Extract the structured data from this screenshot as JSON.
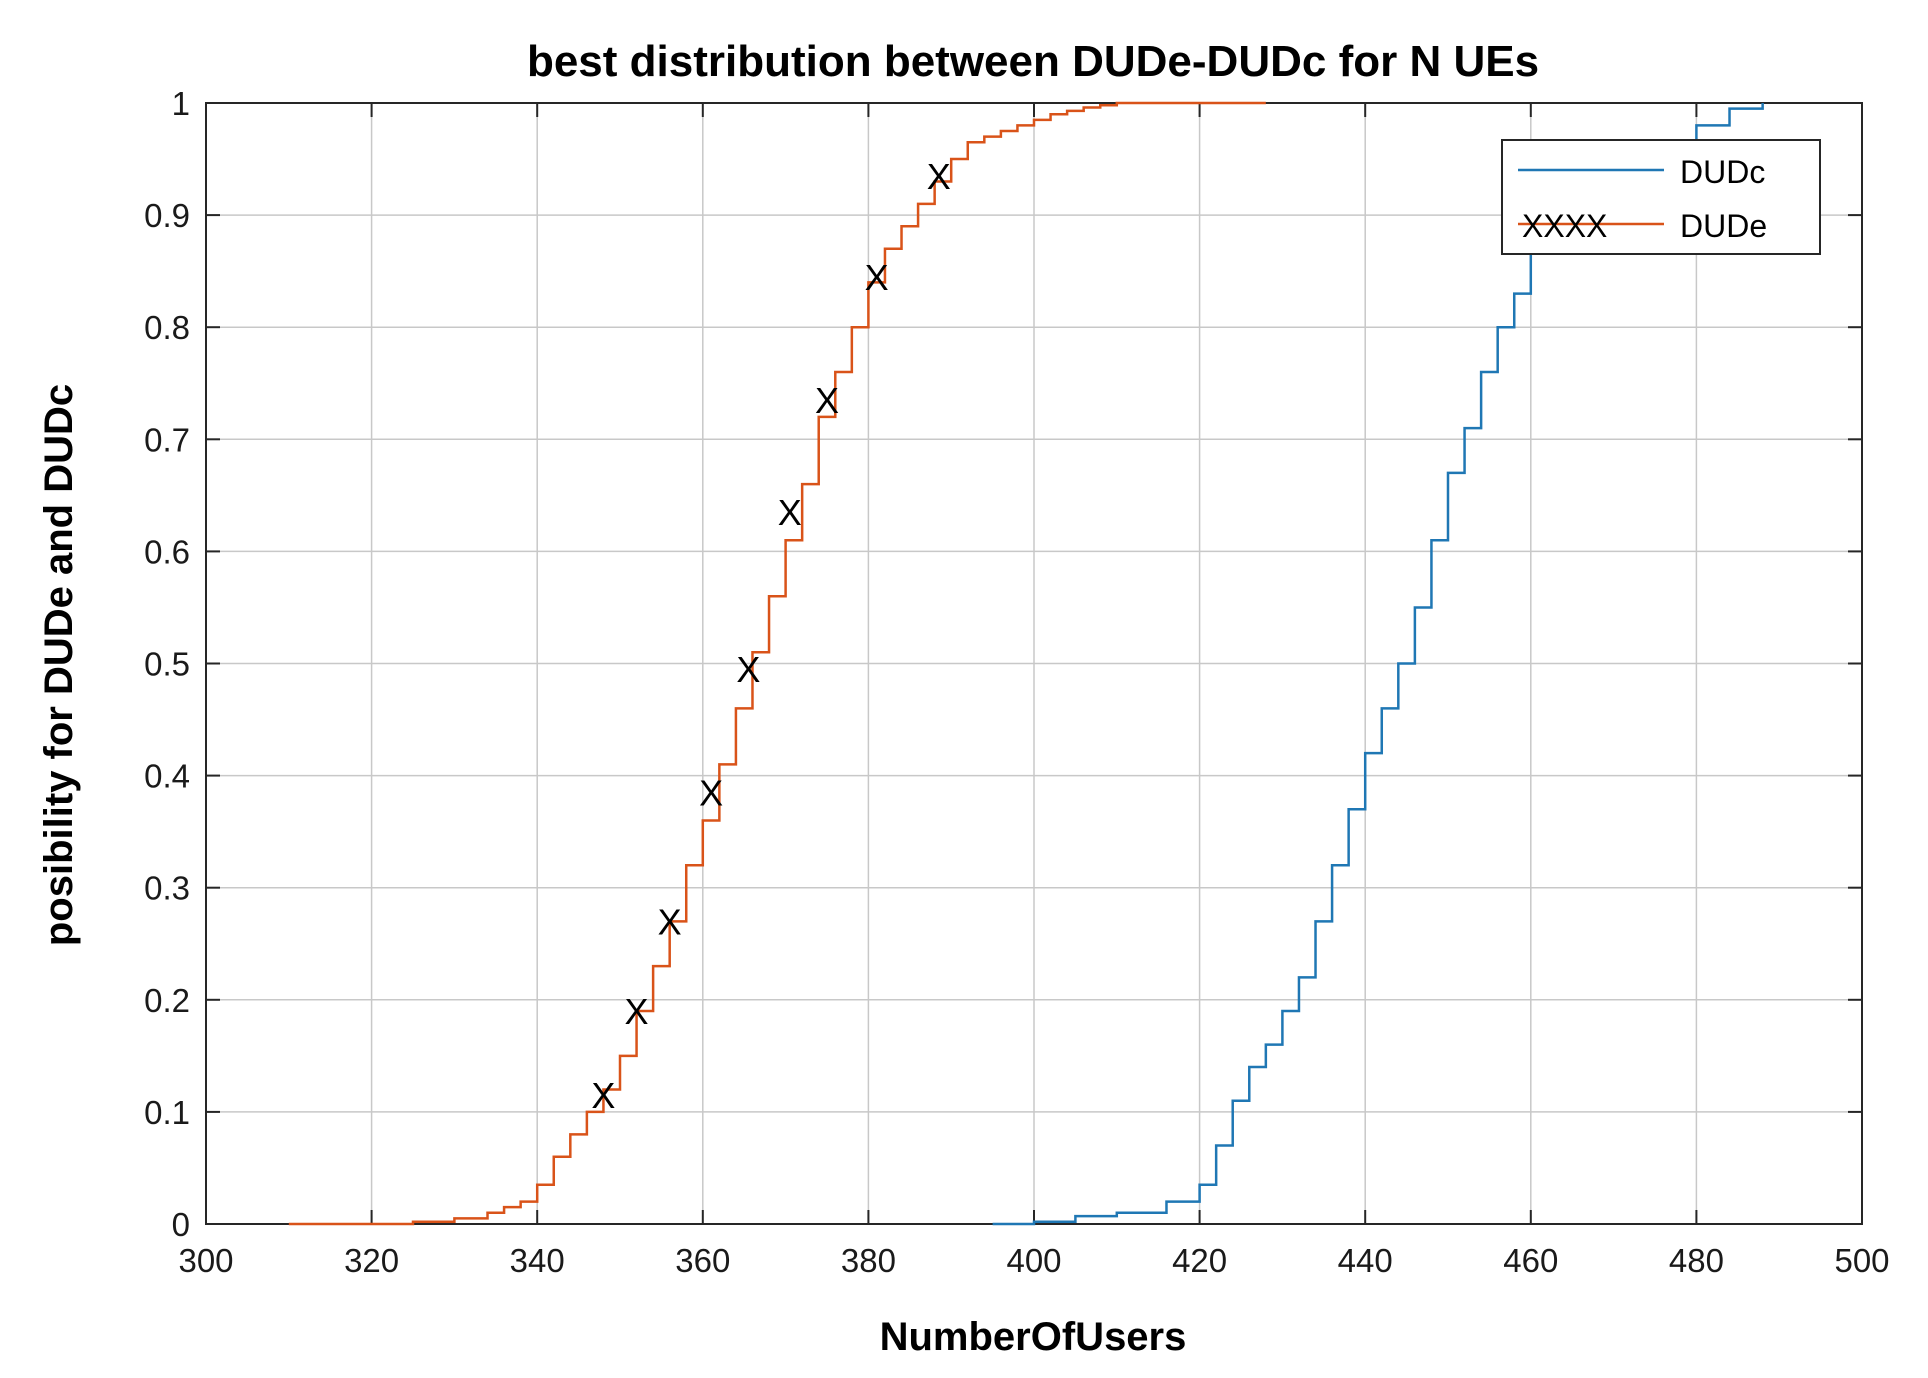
{
  "chart_data": {
    "type": "line",
    "title": "best distribution between DUDe-DUDc for N UEs",
    "xlabel": "NumberOfUsers",
    "ylabel": "posibility for DUDe and DUDc",
    "xlim": [
      300,
      500
    ],
    "ylim": [
      0,
      1
    ],
    "xticks": [
      300,
      320,
      340,
      360,
      380,
      400,
      420,
      440,
      460,
      480,
      500
    ],
    "yticks": [
      0,
      0.1,
      0.2,
      0.3,
      0.4,
      0.5,
      0.6,
      0.7,
      0.8,
      0.9,
      1
    ],
    "xtick_labels": [
      "300",
      "320",
      "340",
      "360",
      "380",
      "400",
      "420",
      "440",
      "460",
      "480",
      "500"
    ],
    "ytick_labels": [
      "0",
      "0.1",
      "0.2",
      "0.3",
      "0.4",
      "0.5",
      "0.6",
      "0.7",
      "0.8",
      "0.9",
      "1"
    ],
    "grid": true,
    "legend_position": "top-right",
    "series": [
      {
        "name": "DUDc",
        "color": "#1f77b4",
        "marker": "",
        "x": [
          395,
          400,
          405,
          410,
          414,
          416,
          420,
          422,
          424,
          426,
          428,
          430,
          432,
          434,
          436,
          438,
          440,
          442,
          444,
          446,
          448,
          450,
          452,
          454,
          456,
          458,
          460,
          462,
          464,
          466,
          468,
          470,
          472,
          474,
          476,
          480,
          484,
          488
        ],
        "y": [
          0,
          0.002,
          0.007,
          0.01,
          0.01,
          0.02,
          0.035,
          0.07,
          0.11,
          0.14,
          0.16,
          0.19,
          0.22,
          0.27,
          0.32,
          0.37,
          0.42,
          0.46,
          0.5,
          0.55,
          0.61,
          0.67,
          0.71,
          0.76,
          0.8,
          0.83,
          0.87,
          0.89,
          0.9,
          0.91,
          0.92,
          0.93,
          0.94,
          0.95,
          0.96,
          0.98,
          0.995,
          1.0
        ]
      },
      {
        "name": "DUDe",
        "color": "#d95319",
        "marker": "X",
        "x": [
          310,
          325,
          330,
          334,
          336,
          338,
          340,
          342,
          344,
          346,
          348,
          350,
          352,
          354,
          356,
          358,
          360,
          362,
          364,
          366,
          368,
          370,
          372,
          374,
          376,
          378,
          380,
          382,
          384,
          386,
          388,
          390,
          392,
          394,
          396,
          398,
          400,
          402,
          404,
          406,
          408,
          410,
          415,
          420,
          428
        ],
        "y": [
          0,
          0.002,
          0.005,
          0.01,
          0.015,
          0.02,
          0.035,
          0.06,
          0.08,
          0.1,
          0.12,
          0.15,
          0.19,
          0.23,
          0.27,
          0.32,
          0.36,
          0.41,
          0.46,
          0.51,
          0.56,
          0.61,
          0.66,
          0.72,
          0.76,
          0.8,
          0.84,
          0.87,
          0.89,
          0.91,
          0.93,
          0.95,
          0.965,
          0.97,
          0.975,
          0.98,
          0.985,
          0.99,
          0.993,
          0.996,
          0.998,
          1.0,
          1.0,
          1.0,
          1.0
        ],
        "marker_points": [
          [
            348,
            0.115
          ],
          [
            352,
            0.19
          ],
          [
            356,
            0.27
          ],
          [
            361,
            0.385
          ],
          [
            365.5,
            0.495
          ],
          [
            370.5,
            0.635
          ],
          [
            375,
            0.735
          ],
          [
            381,
            0.845
          ],
          [
            388.5,
            0.935
          ]
        ]
      }
    ],
    "legend_marker_text": "XXXX"
  }
}
